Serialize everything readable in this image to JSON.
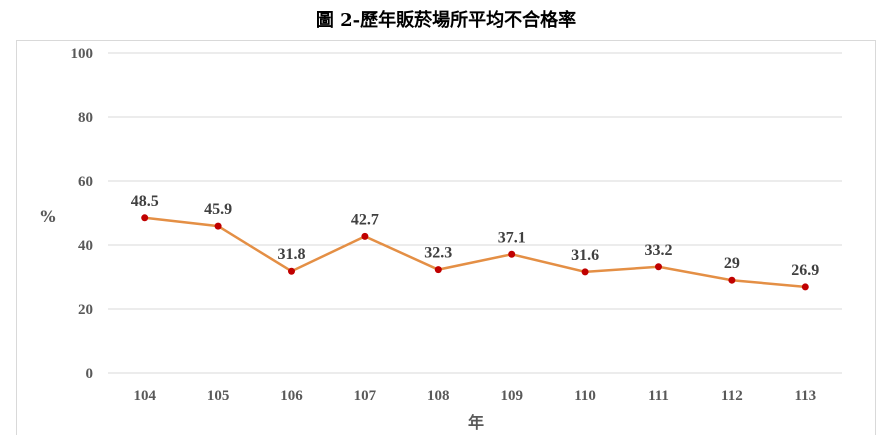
{
  "chart_data": {
    "type": "line",
    "title": "圖 2-歷年販菸場所平均不合格率",
    "xlabel": "年",
    "ylabel": "%",
    "categories": [
      "104",
      "105",
      "106",
      "107",
      "108",
      "109",
      "110",
      "111",
      "112",
      "113"
    ],
    "series": [
      {
        "values": [
          48.5,
          45.9,
          31.8,
          42.7,
          32.3,
          37.1,
          31.6,
          33.2,
          29,
          26.9
        ]
      }
    ],
    "ylim": [
      0,
      100
    ],
    "yticks": [
      0,
      20,
      40,
      60,
      80,
      100
    ],
    "data_labels": [
      "48.5",
      "45.9",
      "31.8",
      "42.7",
      "32.3",
      "37.1",
      "31.6",
      "33.2",
      "29",
      "26.9"
    ],
    "grid": true,
    "legend": "none",
    "colors": {
      "line": "#e48f45",
      "marker": "#c00000",
      "grid": "#d9d9d9"
    }
  }
}
